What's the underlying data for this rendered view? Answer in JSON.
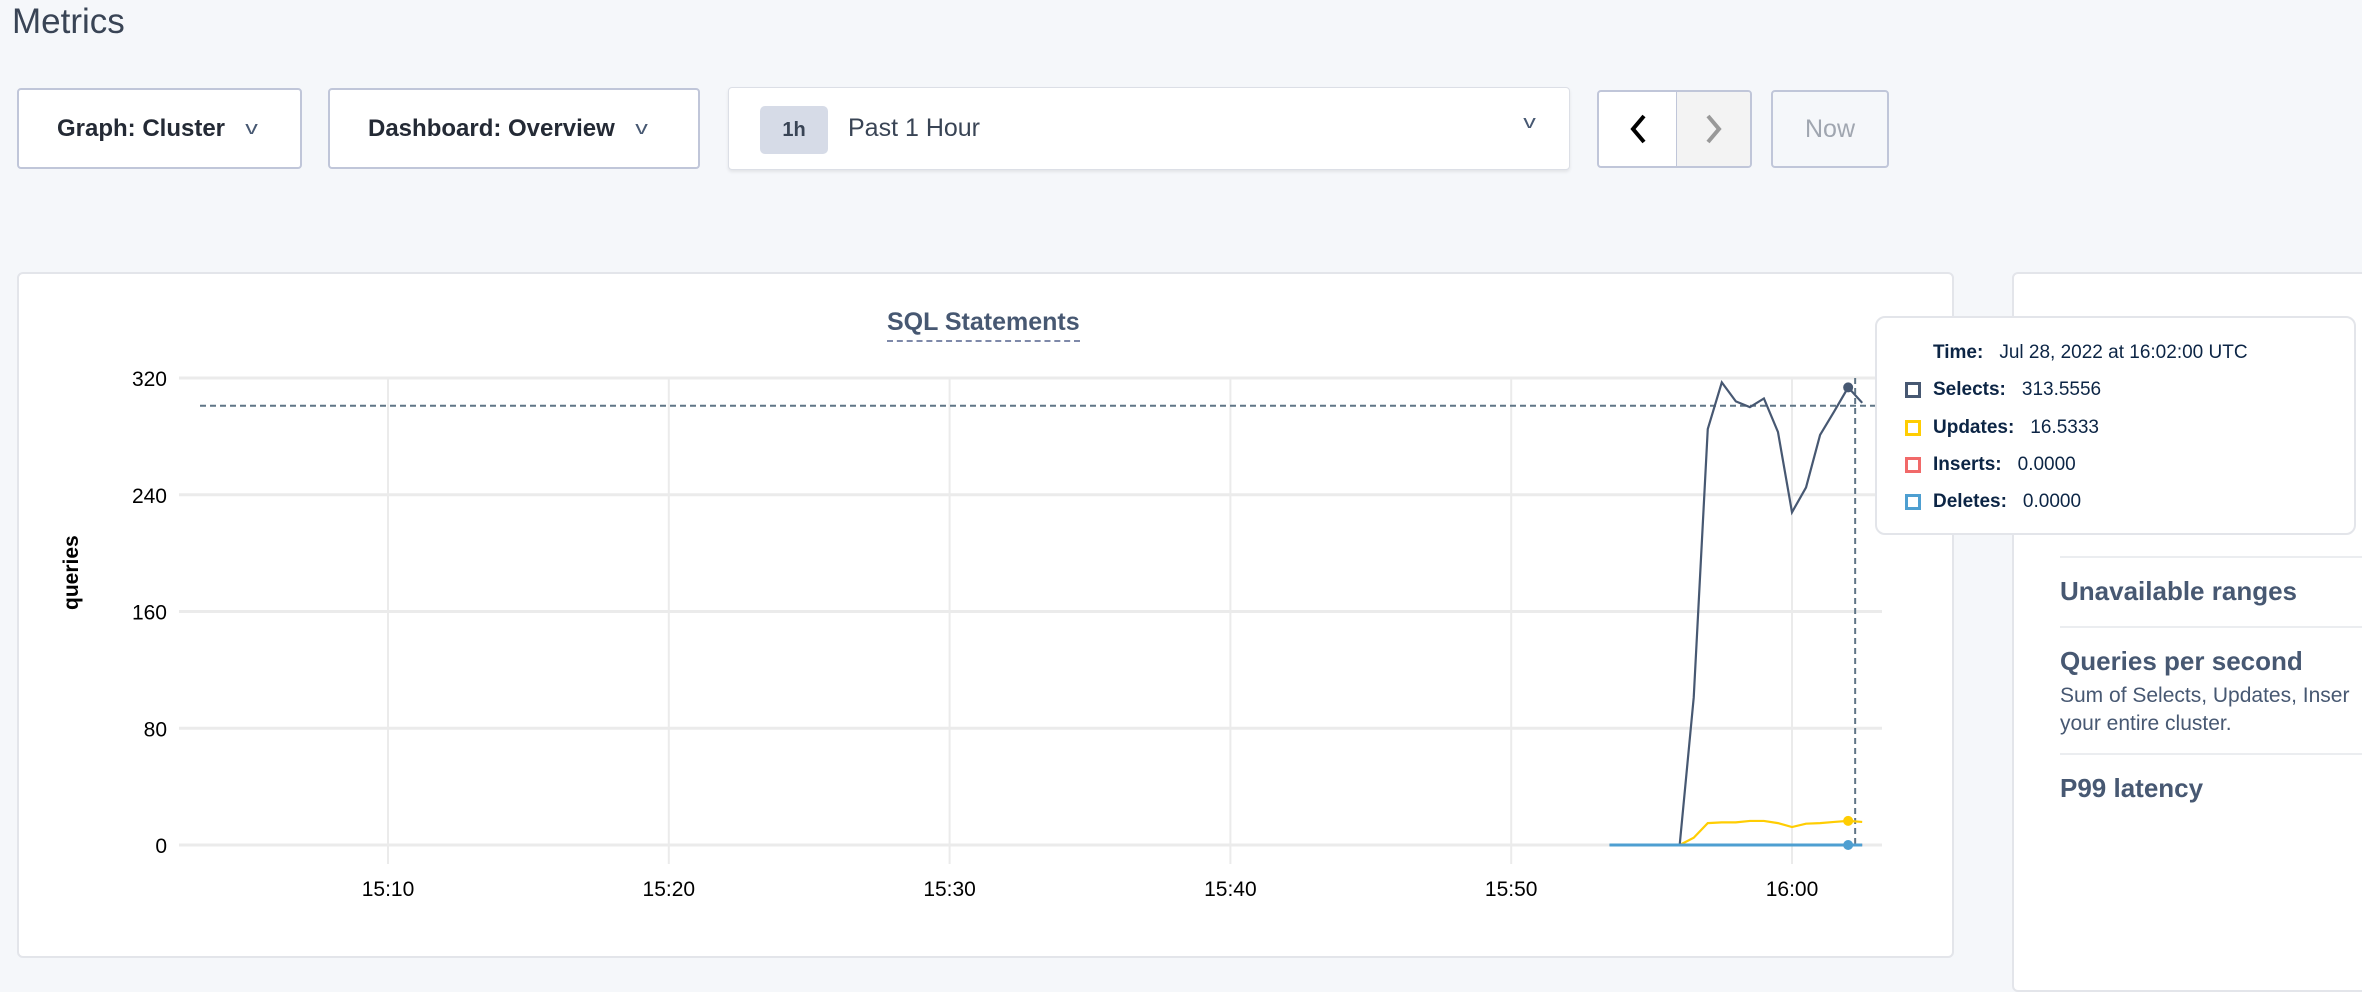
{
  "header": {
    "title": "Metrics"
  },
  "toolbar": {
    "graph_label": "Graph: Cluster",
    "dashboard_label": "Dashboard: Overview",
    "range_badge": "1h",
    "range_label": "Past 1 Hour",
    "prev_icon": "chevron-left-icon",
    "next_icon": "chevron-right-icon",
    "now_label": "Now",
    "dropdown_icon": "chevron-down-icon",
    "chevron_glyph": "v"
  },
  "tooltip": {
    "time_label": "Time:",
    "time_value": "Jul 28, 2022 at 16:02:00 UTC",
    "rows": [
      {
        "label": "Selects:",
        "value": "313.5556",
        "color": "#475872"
      },
      {
        "label": "Updates:",
        "value": "16.5333",
        "color": "#ffcd02"
      },
      {
        "label": "Inserts:",
        "value": "0.0000",
        "color": "#f16969"
      },
      {
        "label": "Deletes:",
        "value": "0.0000",
        "color": "#4e9fd1"
      }
    ]
  },
  "side_panel": {
    "items": [
      {
        "title": "Unavailable ranges"
      },
      {
        "title": "Queries per second",
        "desc_line1": "Sum of Selects, Updates, Inser",
        "desc_line2": "your entire cluster."
      },
      {
        "title": "P99 latency"
      }
    ]
  },
  "chart_data": {
    "type": "line",
    "title": "SQL Statements",
    "ylabel": "queries",
    "xlabel": "",
    "ylim": [
      0,
      320
    ],
    "yticks": [
      "0",
      "80",
      "160",
      "240",
      "320"
    ],
    "xticks": [
      "15:10",
      "15:20",
      "15:30",
      "15:40",
      "15:50",
      "16:00"
    ],
    "grid": true,
    "x": [
      "15:53:30",
      "15:54:00",
      "15:54:30",
      "15:55:00",
      "15:55:30",
      "15:56:00",
      "15:56:30",
      "15:57:00",
      "15:57:30",
      "15:58:00",
      "15:58:30",
      "15:59:00",
      "15:59:30",
      "16:00:00",
      "16:00:30",
      "16:01:00",
      "16:01:30",
      "16:02:00",
      "16:02:30"
    ],
    "series": [
      {
        "name": "Selects",
        "color": "#475872",
        "values": [
          0,
          0,
          0,
          0,
          0,
          0,
          101,
          285,
          317,
          304,
          300,
          306,
          283,
          228,
          245,
          281,
          297,
          313.5556,
          303
        ]
      },
      {
        "name": "Updates",
        "color": "#ffcd02",
        "values": [
          0,
          0,
          0,
          0,
          0,
          0,
          5,
          15,
          15.5,
          15.5,
          16.5,
          16.5,
          15,
          12.3,
          14.6,
          15,
          15.8,
          16.5333,
          15.8
        ]
      },
      {
        "name": "Inserts",
        "color": "#f16969",
        "values": [
          0,
          0,
          0,
          0,
          0,
          0,
          0,
          0,
          0,
          0,
          0,
          0,
          0,
          0,
          0,
          0,
          0,
          0,
          0
        ]
      },
      {
        "name": "Deletes",
        "color": "#4e9fd1",
        "values": [
          0,
          0,
          0,
          0,
          0,
          0,
          0,
          0,
          0,
          0,
          0,
          0,
          0,
          0,
          0,
          0,
          0,
          0,
          0
        ]
      }
    ],
    "hover": {
      "time": "16:02:00",
      "crosshair_value": 301
    }
  }
}
